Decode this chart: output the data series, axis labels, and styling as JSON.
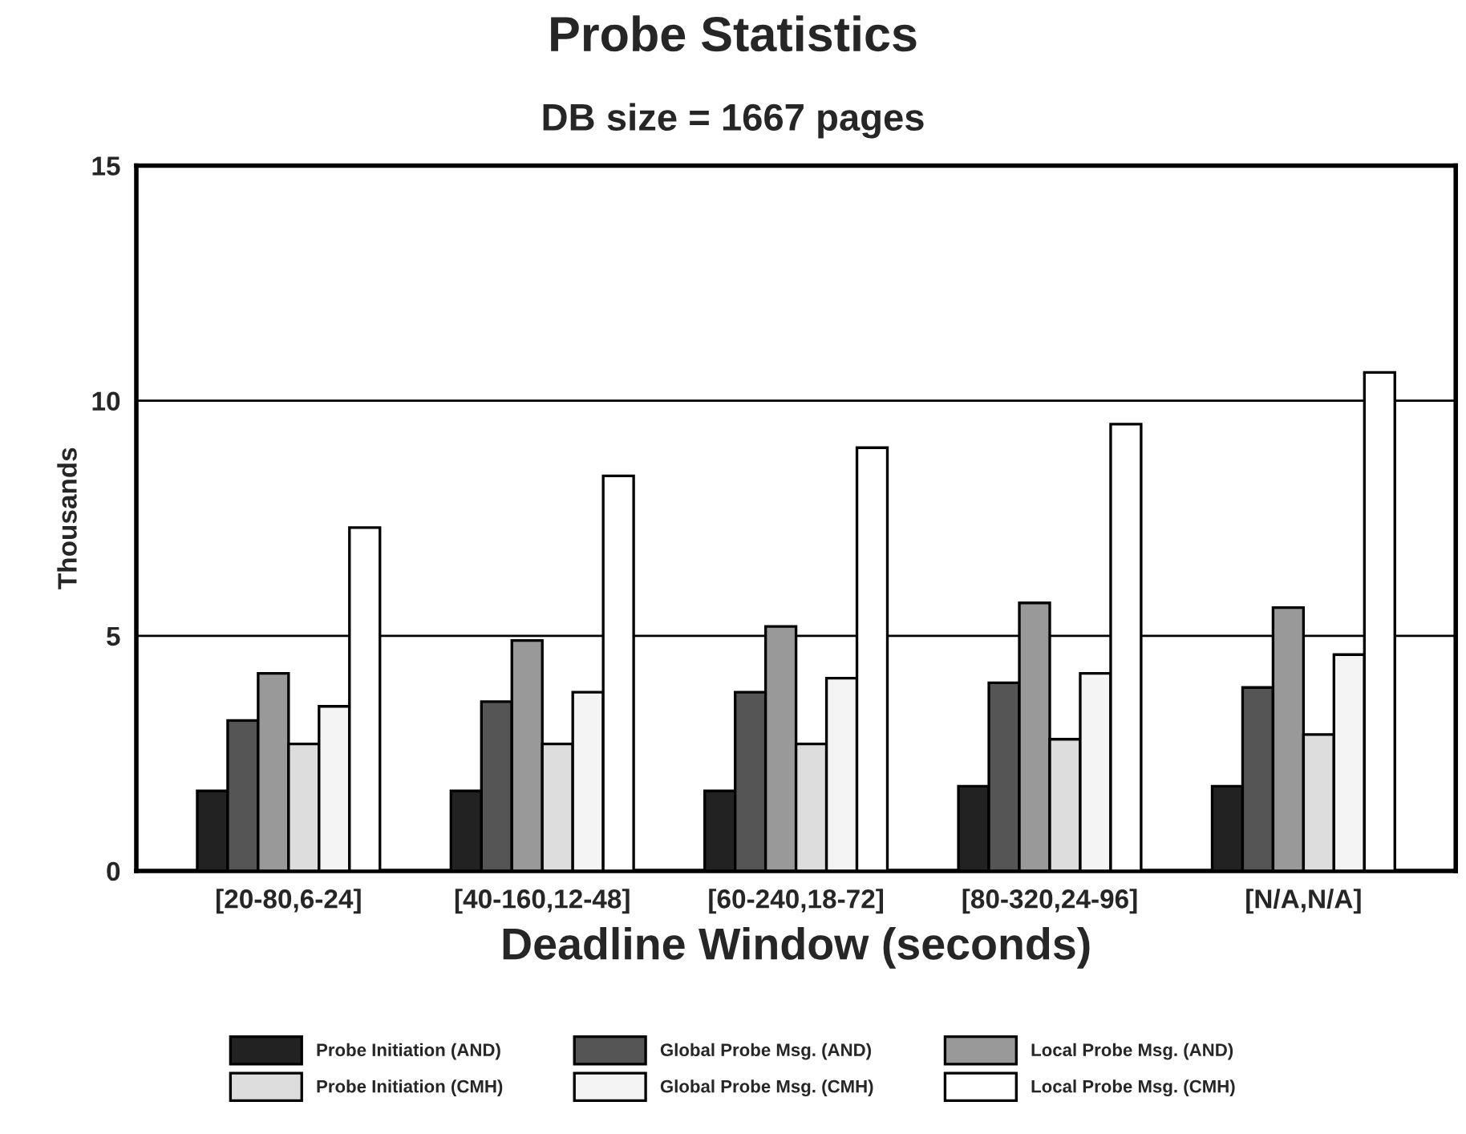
{
  "chart_data": {
    "type": "bar",
    "title": "Probe Statistics",
    "subtitle": "DB size = 1667 pages",
    "xlabel": "Deadline Window (seconds)",
    "ylabel": "Thousands",
    "categories": [
      "[20-80,6-24]",
      "[40-160,12-48]",
      "[60-240,18-72]",
      "[80-320,24-96]",
      "[N/A,N/A]"
    ],
    "series": [
      {
        "name": "Probe Initiation (AND)",
        "color": "#222222",
        "values": [
          1.7,
          1.7,
          1.7,
          1.8,
          1.8
        ]
      },
      {
        "name": "Global Probe Msg. (AND)",
        "color": "#555555",
        "values": [
          3.2,
          3.6,
          3.8,
          4.0,
          3.9
        ]
      },
      {
        "name": "Local Probe Msg. (AND)",
        "color": "#999999",
        "values": [
          4.2,
          4.9,
          5.2,
          5.7,
          5.6
        ]
      },
      {
        "name": "Probe Initiation (CMH)",
        "color": "#dddddd",
        "values": [
          2.7,
          2.7,
          2.7,
          2.8,
          2.9
        ]
      },
      {
        "name": "Global Probe Msg. (CMH)",
        "color": "#f4f4f4",
        "values": [
          3.5,
          3.8,
          4.1,
          4.2,
          4.6
        ]
      },
      {
        "name": "Local Probe Msg. (CMH)",
        "color": "#ffffff",
        "values": [
          7.3,
          8.4,
          9.0,
          9.5,
          10.6
        ]
      }
    ],
    "ylim": [
      0,
      15
    ],
    "yticks": [
      0,
      5,
      10,
      15
    ],
    "grid": "y",
    "legend": "bottom"
  }
}
